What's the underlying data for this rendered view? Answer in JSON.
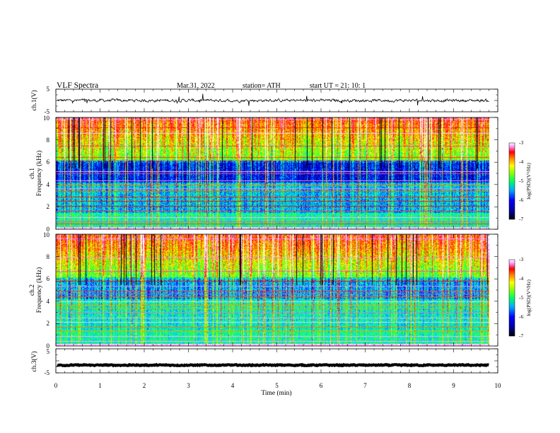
{
  "header": {
    "title": "VLF  Spectra",
    "date": "Mar.31, 2022",
    "station": "station= ATH",
    "start": "start  UT  =    21: 10: 1"
  },
  "colors": {
    "background_band": "#0a1a8a",
    "waveform": "#000000",
    "colorscale": [
      "#000000",
      "#000080",
      "#0000ff",
      "#00b0ff",
      "#00ffc0",
      "#40ff00",
      "#ffff00",
      "#ff8000",
      "#ff0000",
      "#ff80ff",
      "#ffffff"
    ]
  },
  "chart_data": [
    {
      "type": "line",
      "panel": "ch1-waveform",
      "ylabel": "ch.1(V)",
      "yticks": [
        "5",
        "-5"
      ],
      "ylim": [
        -5,
        5
      ],
      "xlim": [
        0,
        10
      ],
      "trace_mean": 0,
      "trace_amplitude": 0.6,
      "trace_end_min": 9.8
    },
    {
      "type": "heatmap",
      "panel": "ch1-spectrogram",
      "ylabel_top": "ch.1",
      "ylabel": "Frequency  (kHz)",
      "yticks": [
        "0",
        "2",
        "4",
        "6",
        "8",
        "10"
      ],
      "ylim": [
        0,
        10
      ],
      "xlim": [
        0,
        10
      ],
      "data_end_min": 9.8,
      "colorbar": {
        "label": "log(PSD)(V²/Hz)",
        "ticks": [
          "-3",
          "-4",
          "-5",
          "-6",
          "-7"
        ],
        "range": [
          -7,
          -3
        ]
      }
    },
    {
      "type": "heatmap",
      "panel": "ch2-spectrogram",
      "ylabel_top": "ch.2",
      "ylabel": "Frequency  (kHz)",
      "yticks": [
        "0",
        "2",
        "4",
        "6",
        "8",
        "10"
      ],
      "ylim": [
        0,
        10
      ],
      "xlim": [
        0,
        10
      ],
      "data_end_min": 9.8,
      "colorbar": {
        "label": "log(PSD)(V²/Hz)",
        "ticks": [
          "-3",
          "-4",
          "-5",
          "-6",
          "-7"
        ],
        "range": [
          -7,
          -3
        ]
      }
    },
    {
      "type": "line",
      "panel": "ch3-waveform",
      "ylabel": "ch.3(V)",
      "yticks": [
        "5",
        "-5"
      ],
      "ylim": [
        -5,
        5
      ],
      "xlim": [
        0,
        10
      ],
      "trace_mean": -1.8,
      "trace_amplitude": 0.2,
      "trace_end_min": 9.8,
      "xlabel": "Time  (min)",
      "xticks": [
        "0",
        "1",
        "2",
        "3",
        "4",
        "5",
        "6",
        "7",
        "8",
        "9",
        "10"
      ]
    }
  ]
}
